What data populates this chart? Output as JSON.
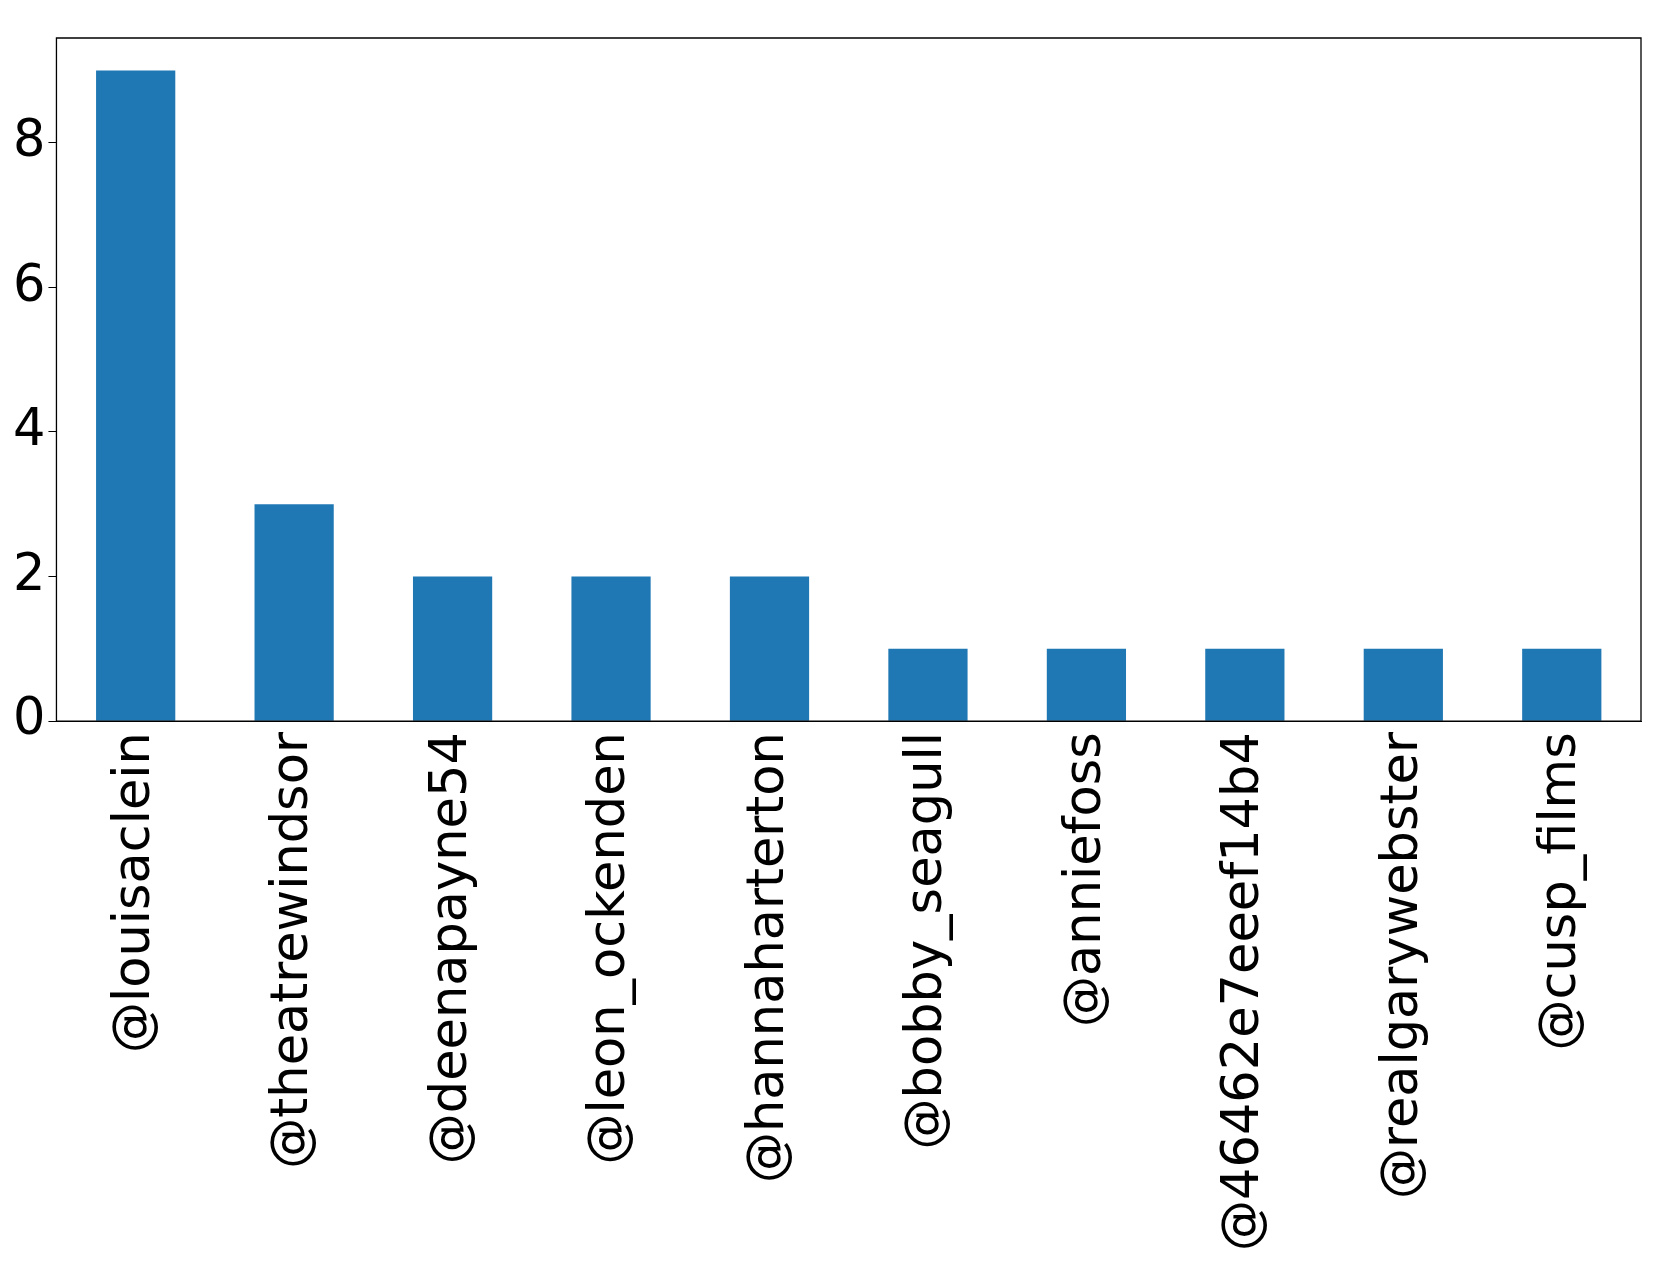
{
  "chart_data": {
    "type": "bar",
    "categories": [
      "@louisaclein",
      "@theatrewindsor",
      "@deenapayne54",
      "@leon_ockenden",
      "@hannaharterton",
      "@bobby_seagull",
      "@anniefoss",
      "@46462e7eeef14b4",
      "@realgarywebster",
      "@cusp_films"
    ],
    "values": [
      9,
      3,
      2,
      2,
      2,
      1,
      1,
      1,
      1,
      1
    ],
    "color": "#1f77b4",
    "ylim": [
      0,
      9.45
    ],
    "yticks": [
      0,
      2,
      4,
      6,
      8
    ],
    "grid": false,
    "legend": false
  }
}
